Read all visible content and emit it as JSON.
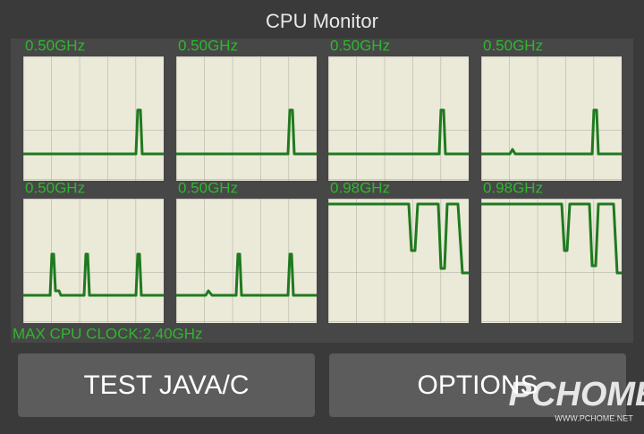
{
  "header": {
    "title": "CPU Monitor"
  },
  "panels": [
    {
      "label": "0.50GHz"
    },
    {
      "label": "0.50GHz"
    },
    {
      "label": "0.50GHz"
    },
    {
      "label": "0.50GHz"
    },
    {
      "label": "0.50GHz"
    },
    {
      "label": "0.50GHz"
    },
    {
      "label": "0.98GHz"
    },
    {
      "label": "0.98GHz"
    }
  ],
  "footer": {
    "max_clock": "MAX CPU CLOCK:2.40GHz"
  },
  "buttons": [
    {
      "label": "TEST JAVA/C"
    },
    {
      "label": "OPTIONS"
    }
  ],
  "watermark": {
    "brand": "PCHOME",
    "url": "WWW.PCHOME.NET"
  }
}
